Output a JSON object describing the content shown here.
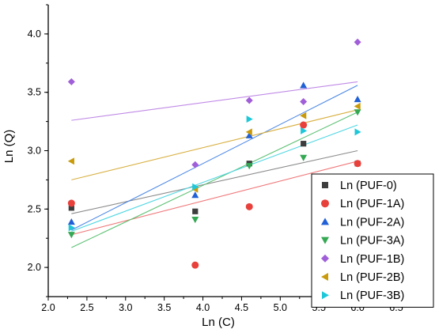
{
  "chart_data": {
    "type": "scatter",
    "title": "",
    "xlabel": "Ln (C)",
    "ylabel": "Ln (Q)",
    "xlim": [
      2.0,
      6.5
    ],
    "ylim": [
      1.75,
      4.25
    ],
    "xticks": [
      "2.0",
      "2.5",
      "3.0",
      "3.5",
      "4.0",
      "4.5",
      "5.0",
      "5.5",
      "6.0",
      "6.5"
    ],
    "yticks": [
      "2.0",
      "2.5",
      "3.0",
      "3.5",
      "4.0"
    ],
    "grid": false,
    "legend_position": "bottom-right",
    "fit_lines": true,
    "series": [
      {
        "name": "Ln (PUF-0)",
        "marker": "square",
        "color": "#3d3d3d",
        "line_color": "#8c8c8c",
        "x": [
          2.3,
          3.9,
          4.6,
          5.3,
          6.0
        ],
        "y": [
          2.51,
          2.48,
          2.89,
          3.06,
          2.89
        ],
        "fit": [
          2.46,
          3.0
        ]
      },
      {
        "name": "Ln (PUF-1A)",
        "marker": "circle",
        "color": "#e8413c",
        "line_color": "#f0787a",
        "x": [
          2.3,
          3.9,
          4.6,
          5.3,
          6.0
        ],
        "y": [
          2.55,
          2.02,
          2.52,
          3.22,
          2.89
        ],
        "fit": [
          2.28,
          2.91
        ]
      },
      {
        "name": "Ln (PUF-2A)",
        "marker": "triangle-up",
        "color": "#2160d6",
        "line_color": "#4b87e6",
        "x": [
          2.3,
          3.9,
          4.6,
          5.3,
          6.0
        ],
        "y": [
          2.39,
          2.62,
          3.13,
          3.56,
          3.44
        ],
        "fit": [
          2.32,
          3.56
        ]
      },
      {
        "name": "Ln (PUF-3A)",
        "marker": "triangle-down",
        "color": "#34a853",
        "line_color": "#5cc173",
        "x": [
          2.3,
          3.9,
          4.6,
          5.3,
          6.0
        ],
        "y": [
          2.28,
          2.41,
          2.87,
          2.94,
          3.33
        ],
        "fit": [
          2.17,
          3.33
        ]
      },
      {
        "name": "Ln (PUF-1B)",
        "marker": "diamond",
        "color": "#a05fd8",
        "line_color": "#c08ae6",
        "x": [
          2.3,
          3.9,
          4.6,
          5.3,
          6.0
        ],
        "y": [
          3.59,
          2.88,
          3.43,
          3.42,
          3.93
        ],
        "fit": [
          3.26,
          3.59
        ]
      },
      {
        "name": "Ln (PUF-2B)",
        "marker": "triangle-left",
        "color": "#c89a0c",
        "line_color": "#d8b042",
        "x": [
          2.3,
          3.9,
          4.6,
          5.3,
          6.0
        ],
        "y": [
          2.91,
          2.67,
          3.16,
          3.3,
          3.38
        ],
        "fit": [
          2.75,
          3.35
        ]
      },
      {
        "name": "Ln (PUF-3B)",
        "marker": "triangle-right",
        "color": "#1ec8d8",
        "line_color": "#4ed6e2",
        "x": [
          2.3,
          3.9,
          4.6,
          5.3,
          6.0
        ],
        "y": [
          2.34,
          2.69,
          3.27,
          3.17,
          3.16
        ],
        "fit": [
          2.31,
          3.22
        ]
      }
    ]
  }
}
